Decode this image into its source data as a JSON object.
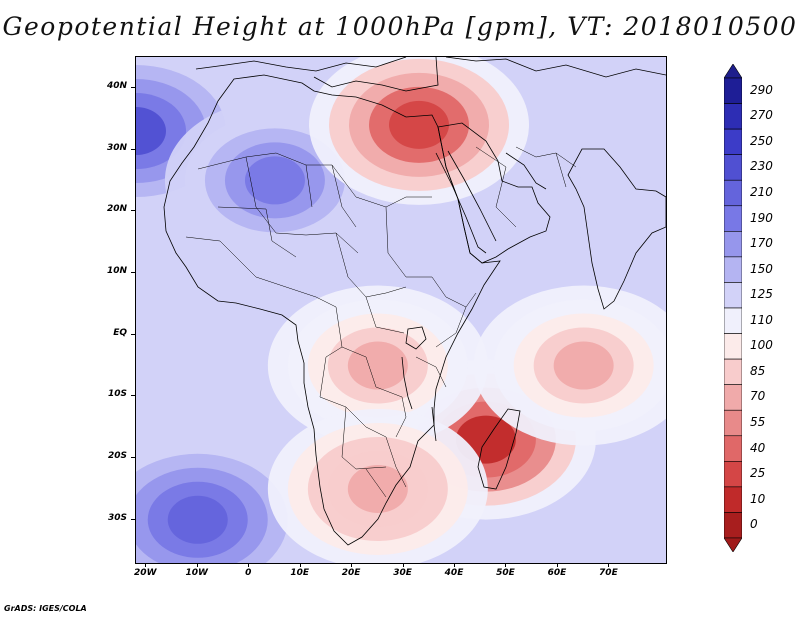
{
  "title": "Geopotential Height at 1000hPa [gpm], VT: 2018010500",
  "credit": "GrADS: IGES/COLA",
  "map": {
    "lat_range": [
      -37,
      45
    ],
    "lon_range": [
      -22,
      81
    ],
    "lat_ticks": [
      {
        "value": 40,
        "label": "40N"
      },
      {
        "value": 30,
        "label": "30N"
      },
      {
        "value": 20,
        "label": "20N"
      },
      {
        "value": 10,
        "label": "10N"
      },
      {
        "value": 0,
        "label": "EQ"
      },
      {
        "value": -10,
        "label": "10S"
      },
      {
        "value": -20,
        "label": "20S"
      },
      {
        "value": -30,
        "label": "30S"
      }
    ],
    "lon_ticks": [
      {
        "value": -20,
        "label": "20W"
      },
      {
        "value": -10,
        "label": "10W"
      },
      {
        "value": 0,
        "label": "0"
      },
      {
        "value": 10,
        "label": "10E"
      },
      {
        "value": 20,
        "label": "20E"
      },
      {
        "value": 30,
        "label": "30E"
      },
      {
        "value": 40,
        "label": "40E"
      },
      {
        "value": 50,
        "label": "50E"
      },
      {
        "value": 60,
        "label": "60E"
      },
      {
        "value": 70,
        "label": "70E"
      }
    ]
  },
  "colorbar": {
    "levels": [
      290,
      270,
      250,
      230,
      210,
      190,
      170,
      150,
      125,
      110,
      100,
      85,
      70,
      55,
      40,
      25,
      10,
      0
    ],
    "colors": [
      "#1e1e96",
      "#2d2db4",
      "#3c3cc8",
      "#5050d2",
      "#6464dc",
      "#7878e6",
      "#9696ec",
      "#b4b4f2",
      "#d2d2f8",
      "#f0f0fc",
      "#fcebea",
      "#f8cccc",
      "#f0aaaa",
      "#e88a8a",
      "#e06868",
      "#d44646",
      "#c02a2a",
      "#a81e1e"
    ],
    "high_color": "#1e1e8c",
    "low_color": "#a01a1a"
  },
  "fields": {
    "highs": [
      {
        "name": "azores-high",
        "lon": -22,
        "lat": 33,
        "value": 230
      },
      {
        "name": "sahara-high",
        "lon": 5,
        "lat": 25,
        "value": 200
      },
      {
        "name": "south-atlantic-high",
        "lon": -10,
        "lat": -30,
        "value": 215
      },
      {
        "name": "arabia-high",
        "lon": 45,
        "lat": 20,
        "value": 140
      }
    ],
    "lows": [
      {
        "name": "cyprus-low",
        "lon": 33,
        "lat": 34,
        "value": 25
      },
      {
        "name": "madagascar-low",
        "lon": 46,
        "lat": -17,
        "value": 15
      },
      {
        "name": "indian-ocean-trough",
        "lon": 65,
        "lat": -5,
        "value": 80
      },
      {
        "name": "congo-trough",
        "lon": 25,
        "lat": -5,
        "value": 80
      },
      {
        "name": "kalahari-low",
        "lon": 25,
        "lat": -25,
        "value": 75
      }
    ]
  }
}
